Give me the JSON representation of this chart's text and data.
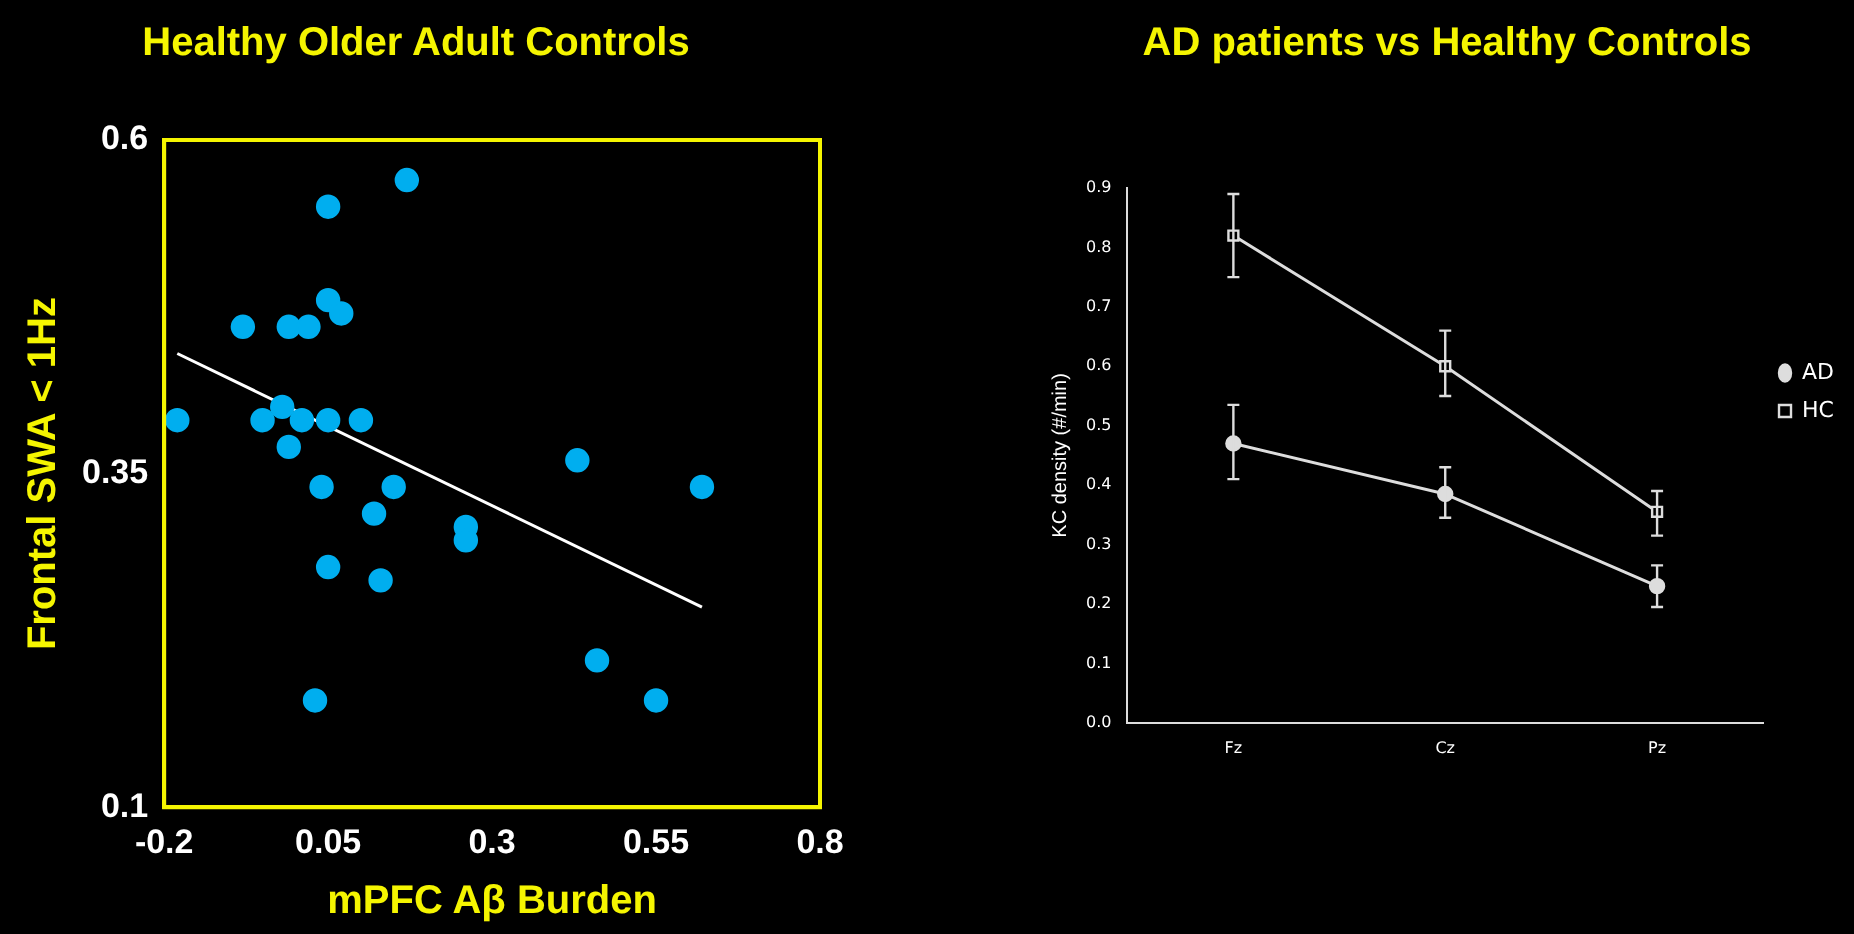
{
  "chart_data": [
    {
      "type": "scatter",
      "title": "Healthy Older Adult Controls",
      "xlabel": "mPFC Aβ Burden",
      "ylabel": "Frontal SWA < 1Hz",
      "xlim": [
        -0.2,
        0.8
      ],
      "ylim": [
        0.1,
        0.6
      ],
      "xticks": [
        -0.2,
        0.05,
        0.3,
        0.55,
        0.8
      ],
      "yticks": [
        0.1,
        0.35,
        0.6
      ],
      "grid": false,
      "legend": false,
      "marker": "circle",
      "series": [
        {
          "type": "scatter",
          "color": "#00aeef",
          "x": [
            0.17,
            0.05,
            0.05,
            0.07,
            -0.08,
            -0.01,
            0.02,
            -0.18,
            -0.05,
            -0.02,
            0.01,
            0.05,
            0.1,
            -0.01,
            0.43,
            0.04,
            0.15,
            0.62,
            0.12,
            0.26,
            0.26,
            0.05,
            0.13,
            0.46,
            0.03,
            0.55
          ],
          "values": [
            0.57,
            0.55,
            0.48,
            0.47,
            0.46,
            0.46,
            0.46,
            0.39,
            0.39,
            0.4,
            0.39,
            0.39,
            0.39,
            0.37,
            0.36,
            0.34,
            0.34,
            0.34,
            0.32,
            0.31,
            0.3,
            0.28,
            0.27,
            0.21,
            0.18,
            0.18
          ]
        },
        {
          "type": "line",
          "color": "#ffffff",
          "marker": "none",
          "x": [
            -0.18,
            0.62
          ],
          "values": [
            0.44,
            0.25
          ]
        }
      ]
    },
    {
      "type": "line",
      "title": "AD patients vs Healthy Controls",
      "ylabel": "KC density (#/min)",
      "categories": [
        "Fz",
        "Cz",
        "Pz"
      ],
      "ylim": [
        0,
        0.9
      ],
      "yticks": [
        {
          "value": 0,
          "label": "0.0"
        },
        0.1,
        0.2,
        0.3,
        0.4,
        0.5,
        0.6,
        0.7,
        0.8,
        0.9
      ],
      "grid": false,
      "legend": "right",
      "line_style": "solid",
      "series": [
        {
          "name": "AD",
          "color": "#dddddd",
          "marker": "circle",
          "values": [
            0.47,
            0.385,
            0.23
          ],
          "errors": [
            [
              0.41,
              0.535
            ],
            [
              0.345,
              0.43
            ],
            [
              0.195,
              0.265
            ]
          ]
        },
        {
          "name": "HC",
          "color": "#dddddd",
          "marker": "square",
          "values": [
            0.82,
            0.6,
            0.355
          ],
          "errors": [
            [
              0.75,
              0.89
            ],
            [
              0.55,
              0.66
            ],
            [
              0.315,
              0.39
            ]
          ]
        }
      ]
    }
  ]
}
